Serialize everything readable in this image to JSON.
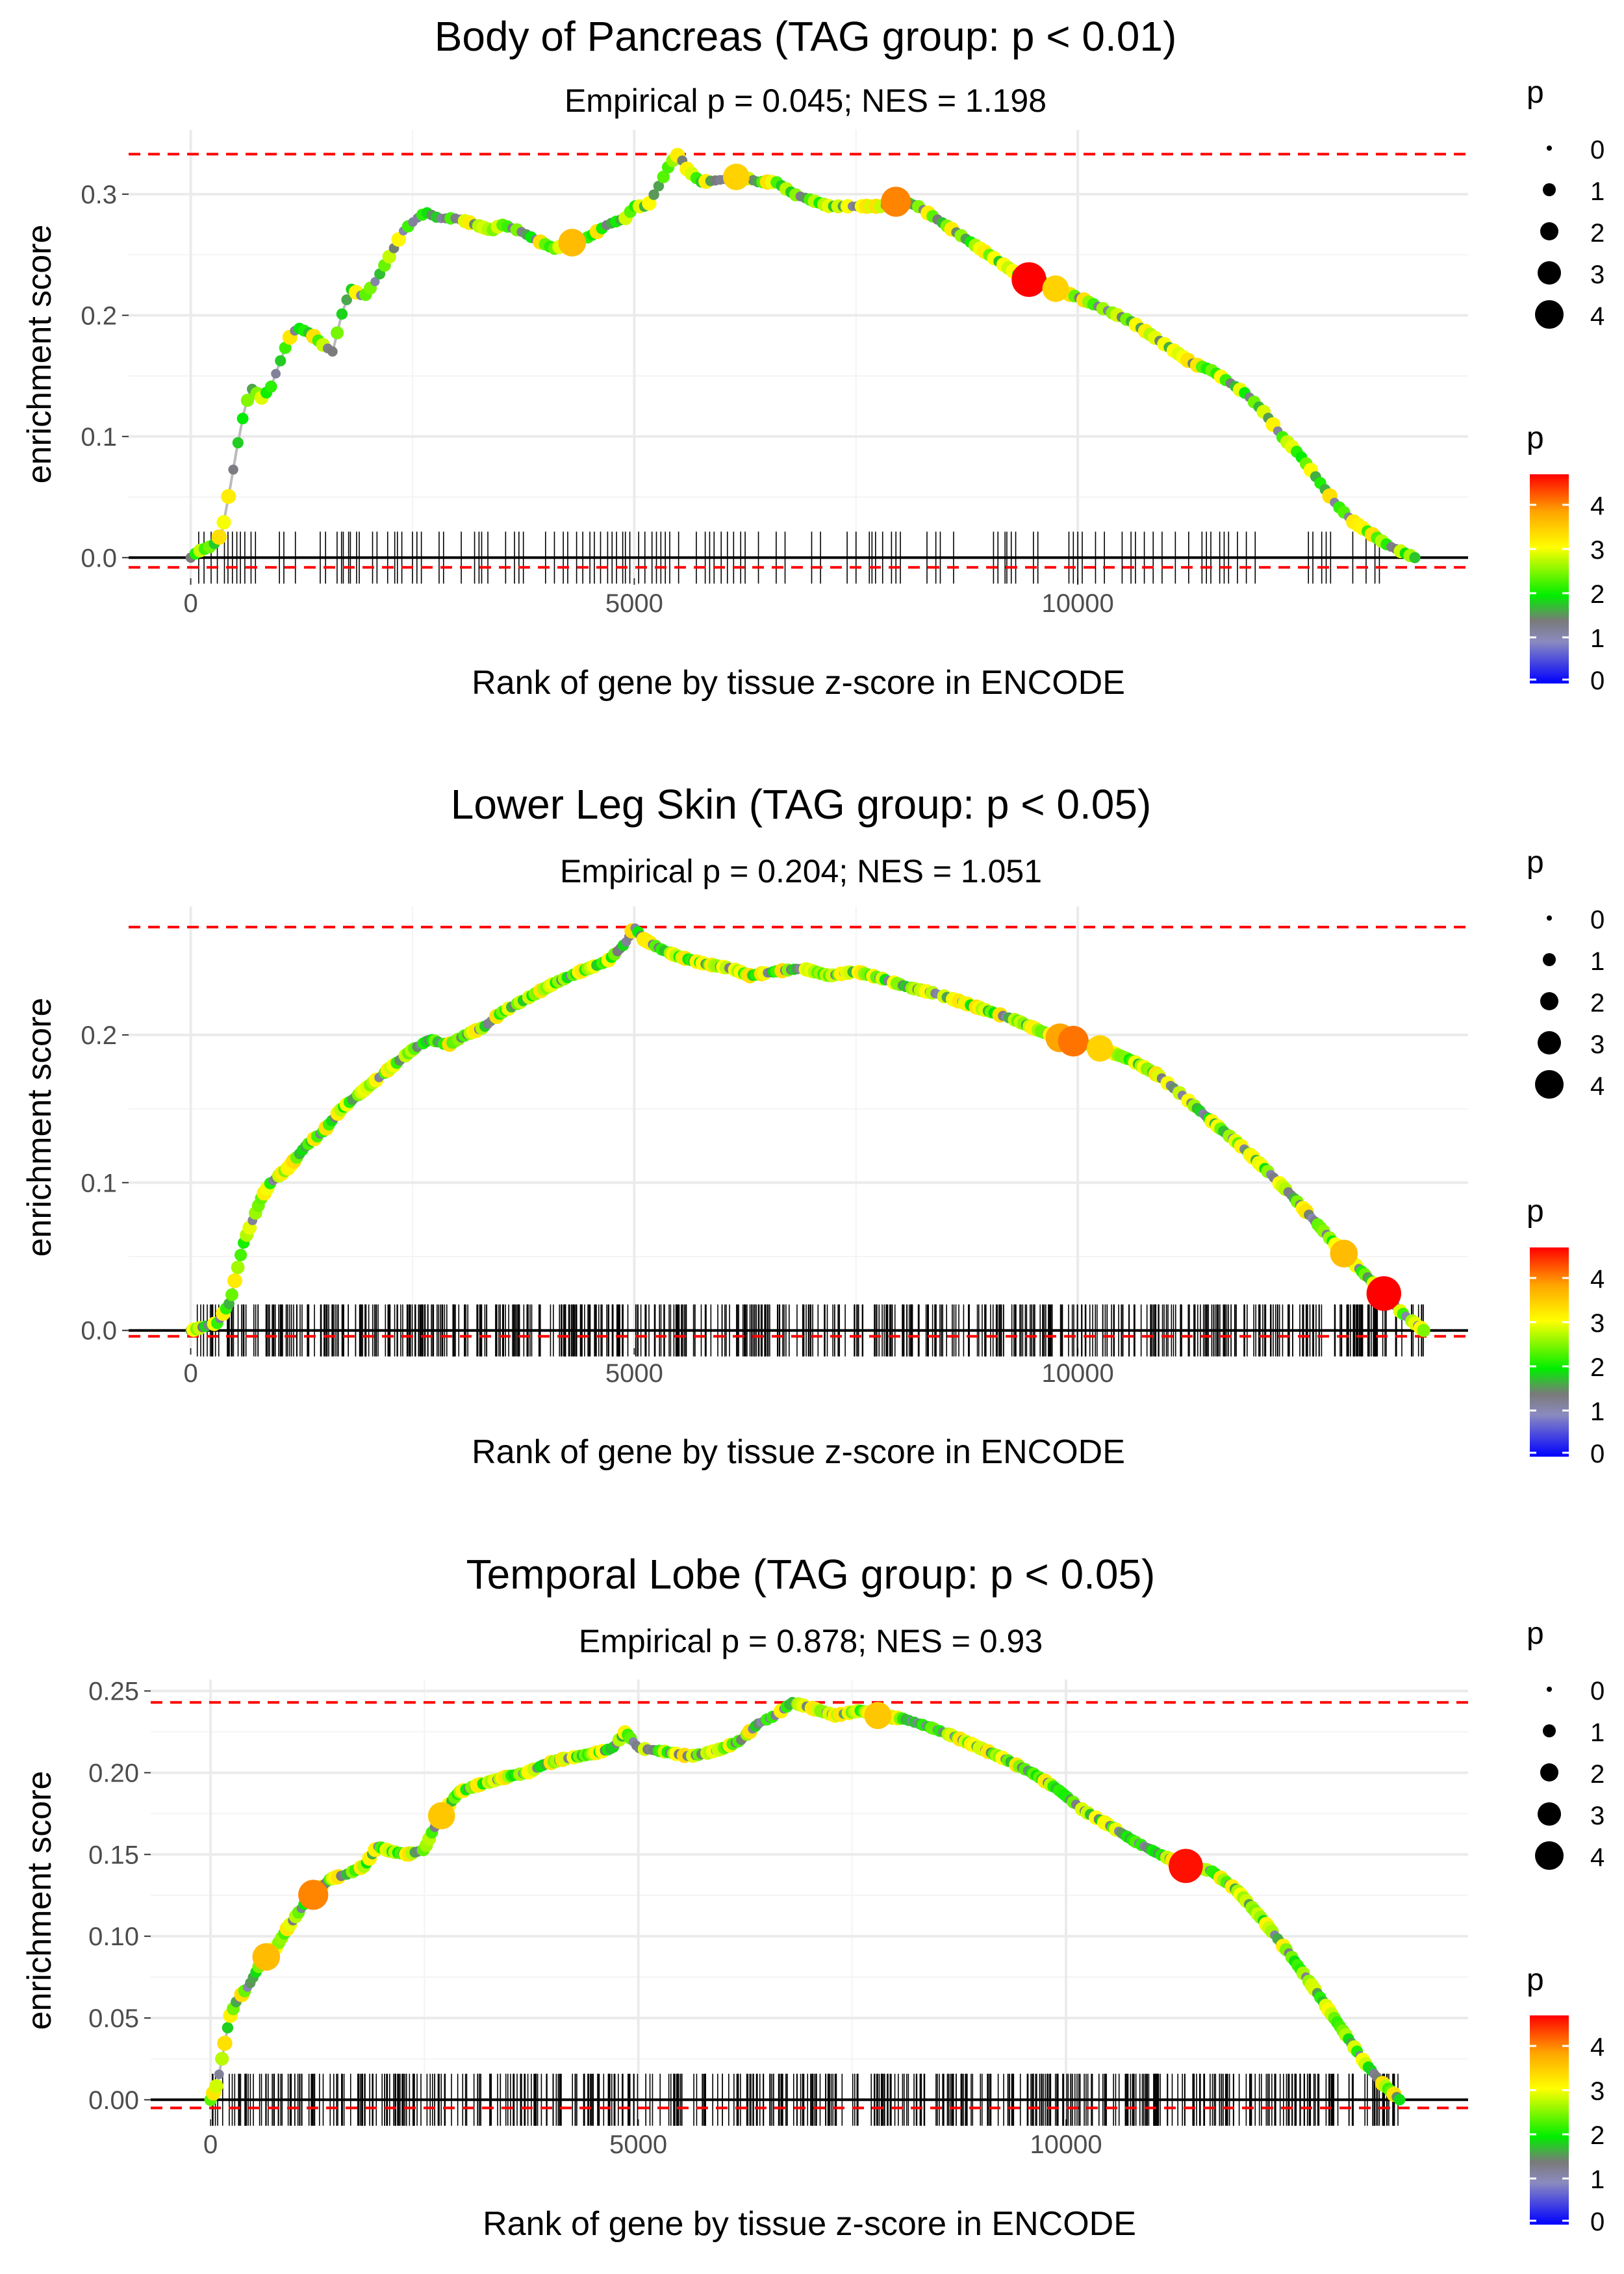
{
  "figure": {
    "type": "enrichment-panels"
  },
  "chart_data": [
    {
      "type": "line",
      "title": "Body of Pancreas (TAG group: p < 0.01)",
      "subtitle": "Empirical p = 0.045; NES = 1.198",
      "xlabel": "Rank of gene by tissue z-score in ENCODE",
      "ylabel": "enrichment score",
      "xlim": [
        -700,
        14400
      ],
      "ylim": [
        -0.017,
        0.353
      ],
      "x_ticks": [
        0,
        5000,
        10000
      ],
      "x_tick_labels": [
        "0",
        "5000",
        "10000"
      ],
      "y_ticks": [
        0.0,
        0.1,
        0.2,
        0.3
      ],
      "y_tick_labels": [
        "0.0",
        "0.1",
        "0.2",
        "0.3"
      ],
      "max_es": 0.333,
      "min_es": -0.008,
      "grid": true,
      "curve": [
        [
          0,
          0
        ],
        [
          80,
          0.005
        ],
        [
          250,
          0.01
        ],
        [
          350,
          0.02
        ],
        [
          450,
          0.06
        ],
        [
          520,
          0.09
        ],
        [
          600,
          0.12
        ],
        [
          680,
          0.14
        ],
        [
          800,
          0.132
        ],
        [
          900,
          0.14
        ],
        [
          1000,
          0.16
        ],
        [
          1100,
          0.18
        ],
        [
          1200,
          0.19
        ],
        [
          1350,
          0.185
        ],
        [
          1500,
          0.175
        ],
        [
          1600,
          0.17
        ],
        [
          1700,
          0.2
        ],
        [
          1800,
          0.222
        ],
        [
          1950,
          0.215
        ],
        [
          2100,
          0.23
        ],
        [
          2250,
          0.25
        ],
        [
          2400,
          0.27
        ],
        [
          2550,
          0.28
        ],
        [
          2650,
          0.285
        ],
        [
          2800,
          0.28
        ],
        [
          3000,
          0.28
        ],
        [
          3200,
          0.275
        ],
        [
          3400,
          0.27
        ],
        [
          3500,
          0.275
        ],
        [
          3700,
          0.27
        ],
        [
          3900,
          0.262
        ],
        [
          4100,
          0.255
        ],
        [
          4300,
          0.26
        ],
        [
          4500,
          0.265
        ],
        [
          4700,
          0.275
        ],
        [
          4900,
          0.28
        ],
        [
          5000,
          0.29
        ],
        [
          5150,
          0.29
        ],
        [
          5300,
          0.31
        ],
        [
          5400,
          0.325
        ],
        [
          5500,
          0.333
        ],
        [
          5600,
          0.32
        ],
        [
          5750,
          0.31
        ],
        [
          6000,
          0.312
        ],
        [
          6200,
          0.315
        ],
        [
          6400,
          0.31
        ],
        [
          6600,
          0.31
        ],
        [
          6800,
          0.3
        ],
        [
          7000,
          0.295
        ],
        [
          7200,
          0.29
        ],
        [
          7500,
          0.29
        ],
        [
          7800,
          0.29
        ],
        [
          8000,
          0.295
        ],
        [
          8200,
          0.29
        ],
        [
          8400,
          0.28
        ],
        [
          8600,
          0.27
        ],
        [
          8800,
          0.26
        ],
        [
          9000,
          0.25
        ],
        [
          9200,
          0.24
        ],
        [
          9400,
          0.23
        ],
        [
          9600,
          0.228
        ],
        [
          9800,
          0.22
        ],
        [
          10000,
          0.215
        ],
        [
          10300,
          0.205
        ],
        [
          10600,
          0.195
        ],
        [
          10900,
          0.18
        ],
        [
          11100,
          0.17
        ],
        [
          11300,
          0.16
        ],
        [
          11500,
          0.155
        ],
        [
          11700,
          0.145
        ],
        [
          11900,
          0.135
        ],
        [
          12100,
          0.12
        ],
        [
          12300,
          0.1
        ],
        [
          12500,
          0.085
        ],
        [
          12700,
          0.065
        ],
        [
          12900,
          0.045
        ],
        [
          13100,
          0.03
        ],
        [
          13300,
          0.02
        ],
        [
          13500,
          0.01
        ],
        [
          13800,
          0.0
        ]
      ],
      "highlights": [
        {
          "x": 4300,
          "p": 3.4
        },
        {
          "x": 6150,
          "p": 3.2
        },
        {
          "x": 7950,
          "p": 3.8
        },
        {
          "x": 9450,
          "p": 4.6
        },
        {
          "x": 9750,
          "p": 3.2
        }
      ],
      "hits": [
        90,
        150,
        230,
        300,
        380,
        420,
        470,
        520,
        560,
        610,
        680,
        730,
        1000,
        1050,
        1180,
        1460,
        1520,
        1650,
        1700,
        1720,
        1780,
        1800,
        1870,
        1900,
        2050,
        2100,
        2220,
        2300,
        2330,
        2380,
        2500,
        2550,
        2600,
        2800,
        2850,
        3050,
        3200,
        3250,
        3280,
        3350,
        3550,
        3650,
        3700,
        3750,
        4000,
        4100,
        4200,
        4250,
        4350,
        4420,
        4500,
        4550,
        4620,
        4700,
        4750,
        4800,
        4870,
        4900,
        4950,
        5050,
        5120,
        5200,
        5250,
        5300,
        5350,
        5400,
        5500,
        5700,
        5800,
        5850,
        5900,
        5980,
        6050,
        6120,
        6200,
        6250,
        6400,
        6600,
        6700,
        7000,
        7100,
        7400,
        7500,
        7650,
        7680,
        7720,
        7800,
        7900,
        7950,
        8000,
        8300,
        8400,
        8450,
        8600,
        9050,
        9100,
        9180,
        9200,
        9250,
        9300,
        9500,
        9550,
        9900,
        9950,
        10000,
        10050,
        10200,
        10300,
        10500,
        10600,
        10650,
        10750,
        10850,
        10950,
        11100,
        11250,
        11400,
        11450,
        11500,
        11600,
        11650,
        11700,
        11800,
        11900,
        12000,
        12600,
        12650,
        12750,
        12800,
        12850,
        13100,
        13250,
        13350,
        13400
      ]
    },
    {
      "type": "line",
      "title": "Lower Leg Skin (TAG group: p < 0.05)",
      "subtitle": "Empirical p = 0.204; NES = 1.051",
      "xlabel": "Rank of gene by tissue z-score in ENCODE",
      "ylabel": "enrichment score",
      "xlim": [
        -700,
        14400
      ],
      "ylim": [
        -0.012,
        0.287
      ],
      "x_ticks": [
        0,
        5000,
        10000
      ],
      "x_tick_labels": [
        "0",
        "5000",
        "10000"
      ],
      "y_ticks": [
        0.0,
        0.1,
        0.2
      ],
      "y_tick_labels": [
        "0.0",
        "0.1",
        "0.2"
      ],
      "max_es": 0.273,
      "min_es": -0.004,
      "grid": true,
      "curve": [
        [
          0,
          0
        ],
        [
          300,
          0.005
        ],
        [
          450,
          0.02
        ],
        [
          520,
          0.04
        ],
        [
          600,
          0.06
        ],
        [
          700,
          0.075
        ],
        [
          800,
          0.09
        ],
        [
          900,
          0.1
        ],
        [
          1100,
          0.11
        ],
        [
          1300,
          0.125
        ],
        [
          1500,
          0.135
        ],
        [
          1700,
          0.15
        ],
        [
          1900,
          0.16
        ],
        [
          2100,
          0.17
        ],
        [
          2300,
          0.18
        ],
        [
          2500,
          0.19
        ],
        [
          2700,
          0.197
        ],
        [
          2900,
          0.193
        ],
        [
          3100,
          0.2
        ],
        [
          3300,
          0.205
        ],
        [
          3500,
          0.215
        ],
        [
          3800,
          0.225
        ],
        [
          4100,
          0.235
        ],
        [
          4400,
          0.243
        ],
        [
          4700,
          0.25
        ],
        [
          4900,
          0.262
        ],
        [
          5000,
          0.273
        ],
        [
          5100,
          0.265
        ],
        [
          5300,
          0.258
        ],
        [
          5500,
          0.253
        ],
        [
          5800,
          0.248
        ],
        [
          6100,
          0.245
        ],
        [
          6300,
          0.24
        ],
        [
          6600,
          0.243
        ],
        [
          6900,
          0.245
        ],
        [
          7200,
          0.24
        ],
        [
          7500,
          0.243
        ],
        [
          7800,
          0.238
        ],
        [
          8100,
          0.232
        ],
        [
          8400,
          0.228
        ],
        [
          8700,
          0.222
        ],
        [
          9000,
          0.216
        ],
        [
          9300,
          0.21
        ],
        [
          9600,
          0.202
        ],
        [
          9800,
          0.198
        ],
        [
          10000,
          0.195
        ],
        [
          10300,
          0.19
        ],
        [
          10600,
          0.183
        ],
        [
          10900,
          0.173
        ],
        [
          11200,
          0.158
        ],
        [
          11500,
          0.142
        ],
        [
          11800,
          0.127
        ],
        [
          12100,
          0.11
        ],
        [
          12400,
          0.092
        ],
        [
          12700,
          0.072
        ],
        [
          12950,
          0.055
        ],
        [
          13200,
          0.04
        ],
        [
          13450,
          0.025
        ],
        [
          13650,
          0.012
        ],
        [
          13900,
          0.0
        ]
      ],
      "highlights": [
        {
          "x": 9800,
          "p": 3.6
        },
        {
          "x": 9950,
          "p": 3.9
        },
        {
          "x": 10250,
          "p": 3.2
        },
        {
          "x": 13000,
          "p": 3.4
        },
        {
          "x": 13450,
          "p": 4.6
        }
      ],
      "hits": []
    },
    {
      "type": "line",
      "title": "Temporal Lobe (TAG group: p < 0.05)",
      "subtitle": "Empirical p = 0.878; NES = 0.93",
      "xlabel": "Rank of gene by tissue z-score in ENCODE",
      "ylabel": "enrichment score",
      "xlim": [
        -700,
        14700
      ],
      "ylim": [
        -0.012,
        0.257
      ],
      "x_ticks": [
        0,
        5000,
        10000
      ],
      "x_tick_labels": [
        "0",
        "5000",
        "10000"
      ],
      "y_ticks": [
        0.0,
        0.05,
        0.1,
        0.15,
        0.2,
        0.25
      ],
      "y_tick_labels": [
        "0.00",
        "0.05",
        "0.10",
        "0.15",
        "0.20",
        "0.25"
      ],
      "max_es": 0.243,
      "min_es": -0.005,
      "grid": true,
      "curve": [
        [
          0,
          0
        ],
        [
          80,
          0.01
        ],
        [
          150,
          0.03
        ],
        [
          220,
          0.05
        ],
        [
          300,
          0.06
        ],
        [
          450,
          0.07
        ],
        [
          600,
          0.085
        ],
        [
          750,
          0.092
        ],
        [
          900,
          0.105
        ],
        [
          1100,
          0.12
        ],
        [
          1250,
          0.128
        ],
        [
          1400,
          0.135
        ],
        [
          1600,
          0.138
        ],
        [
          1800,
          0.143
        ],
        [
          1950,
          0.155
        ],
        [
          2100,
          0.152
        ],
        [
          2300,
          0.15
        ],
        [
          2500,
          0.153
        ],
        [
          2600,
          0.165
        ],
        [
          2750,
          0.178
        ],
        [
          2900,
          0.188
        ],
        [
          3100,
          0.192
        ],
        [
          3300,
          0.195
        ],
        [
          3500,
          0.198
        ],
        [
          3700,
          0.2
        ],
        [
          3900,
          0.205
        ],
        [
          4100,
          0.208
        ],
        [
          4300,
          0.21
        ],
        [
          4500,
          0.212
        ],
        [
          4700,
          0.215
        ],
        [
          4850,
          0.225
        ],
        [
          5000,
          0.215
        ],
        [
          5300,
          0.213
        ],
        [
          5600,
          0.21
        ],
        [
          5800,
          0.212
        ],
        [
          6000,
          0.215
        ],
        [
          6200,
          0.22
        ],
        [
          6400,
          0.23
        ],
        [
          6600,
          0.235
        ],
        [
          6800,
          0.243
        ],
        [
          7000,
          0.24
        ],
        [
          7300,
          0.235
        ],
        [
          7600,
          0.238
        ],
        [
          7800,
          0.235
        ],
        [
          8100,
          0.233
        ],
        [
          8400,
          0.228
        ],
        [
          8700,
          0.222
        ],
        [
          9000,
          0.215
        ],
        [
          9300,
          0.208
        ],
        [
          9600,
          0.2
        ],
        [
          9900,
          0.19
        ],
        [
          10200,
          0.177
        ],
        [
          10500,
          0.168
        ],
        [
          10800,
          0.158
        ],
        [
          11100,
          0.15
        ],
        [
          11400,
          0.143
        ],
        [
          11700,
          0.14
        ],
        [
          12000,
          0.128
        ],
        [
          12300,
          0.11
        ],
        [
          12600,
          0.09
        ],
        [
          12900,
          0.068
        ],
        [
          13200,
          0.045
        ],
        [
          13500,
          0.022
        ],
        [
          13700,
          0.01
        ],
        [
          13900,
          0.0
        ]
      ],
      "highlights": [
        {
          "x": 650,
          "p": 3.4
        },
        {
          "x": 1200,
          "p": 3.8
        },
        {
          "x": 2700,
          "p": 3.3
        },
        {
          "x": 7800,
          "p": 3.3
        },
        {
          "x": 11400,
          "p": 4.5
        }
      ],
      "hits": []
    }
  ],
  "legend": {
    "size_title": "p",
    "size_items": [
      "0",
      "1",
      "2",
      "3",
      "4"
    ],
    "color_title": "p",
    "color_ticks": [
      "4",
      "3",
      "2",
      "1",
      "0"
    ],
    "colors": [
      "#0000ff",
      "#8a8ac0",
      "#7a7a7a",
      "#00ee00",
      "#ffff00",
      "#ffa500",
      "#ff0000"
    ]
  },
  "style": {
    "curve_color": "#bbbbbb",
    "ref_line_color": "#ff0000",
    "zero_line_color": "#000000",
    "grid_color": "#ebebeb"
  }
}
